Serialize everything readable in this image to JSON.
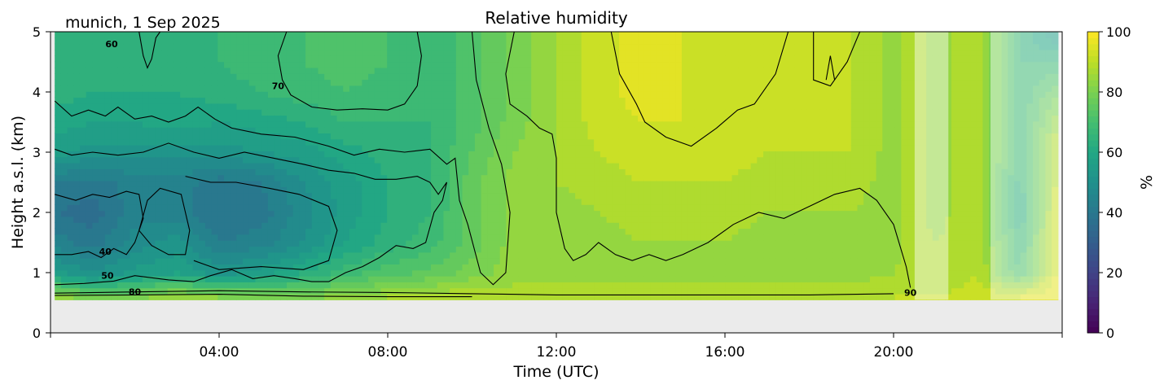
{
  "chart_data": {
    "type": "heatmap",
    "title": "Relative humidity",
    "subtitle": "munich, 1 Sep 2025",
    "xlabel": "Time (UTC)",
    "ylabel": "Height a.s.l. (km)",
    "xlim": [
      0,
      24
    ],
    "ylim": [
      0,
      5
    ],
    "x_ticks": [
      {
        "value": 4,
        "label": "04:00"
      },
      {
        "value": 8,
        "label": "08:00"
      },
      {
        "value": 12,
        "label": "12:00"
      },
      {
        "value": 16,
        "label": "16:00"
      },
      {
        "value": 20,
        "label": "20:00"
      }
    ],
    "y_ticks": [
      {
        "value": 0,
        "label": "0"
      },
      {
        "value": 1,
        "label": "1"
      },
      {
        "value": 2,
        "label": "2"
      },
      {
        "value": 3,
        "label": "3"
      },
      {
        "value": 4,
        "label": "4"
      },
      {
        "value": 5,
        "label": "5"
      }
    ],
    "colorbar": {
      "label": "%",
      "range": [
        0,
        100
      ],
      "colormap": "viridis",
      "ticks": [
        {
          "value": 0,
          "label": "0"
        },
        {
          "value": 20,
          "label": "20"
        },
        {
          "value": 40,
          "label": "40"
        },
        {
          "value": 60,
          "label": "60"
        },
        {
          "value": 80,
          "label": "80"
        },
        {
          "value": 100,
          "label": "100"
        }
      ]
    },
    "data_bottom_km": 0.55,
    "missing_color": "#ebebeb",
    "times_h": [
      0.1,
      1,
      2,
      3,
      4,
      5,
      6,
      7,
      8,
      9,
      10,
      11,
      12,
      13,
      14,
      15,
      16,
      17,
      18,
      19,
      20,
      20.5,
      21,
      22,
      23,
      23.9
    ],
    "heights_km": [
      0.6,
      1.0,
      1.5,
      2.0,
      2.5,
      3.0,
      3.5,
      4.0,
      4.5,
      5.0
    ],
    "rh_percent": [
      [
        86,
        78,
        80,
        86,
        82,
        80,
        80,
        84,
        86,
        88,
        90,
        88,
        88,
        88,
        88,
        88,
        88,
        88,
        88,
        88,
        90,
        90,
        90,
        92,
        94,
        96
      ],
      [
        55,
        50,
        55,
        58,
        52,
        56,
        62,
        68,
        72,
        75,
        80,
        84,
        84,
        84,
        84,
        84,
        84,
        84,
        84,
        84,
        86,
        88,
        86,
        90,
        70,
        96
      ],
      [
        44,
        40,
        48,
        52,
        42,
        44,
        50,
        58,
        64,
        68,
        76,
        84,
        84,
        84,
        86,
        86,
        86,
        84,
        84,
        84,
        84,
        88,
        86,
        90,
        66,
        96
      ],
      [
        38,
        36,
        44,
        44,
        38,
        40,
        48,
        56,
        62,
        66,
        76,
        84,
        84,
        86,
        88,
        88,
        88,
        86,
        86,
        86,
        84,
        88,
        84,
        90,
        62,
        94
      ],
      [
        42,
        40,
        44,
        44,
        40,
        42,
        50,
        56,
        62,
        66,
        76,
        84,
        86,
        88,
        90,
        90,
        90,
        88,
        88,
        88,
        84,
        88,
        84,
        90,
        64,
        92
      ],
      [
        56,
        52,
        52,
        52,
        52,
        54,
        56,
        60,
        64,
        66,
        74,
        82,
        86,
        90,
        92,
        92,
        92,
        90,
        90,
        90,
        84,
        88,
        84,
        90,
        66,
        90
      ],
      [
        60,
        58,
        58,
        60,
        58,
        60,
        62,
        66,
        66,
        66,
        72,
        80,
        86,
        92,
        94,
        94,
        92,
        90,
        90,
        90,
        84,
        88,
        84,
        90,
        66,
        86
      ],
      [
        64,
        62,
        62,
        62,
        64,
        66,
        68,
        70,
        68,
        66,
        72,
        80,
        86,
        92,
        96,
        94,
        92,
        90,
        90,
        90,
        84,
        88,
        84,
        90,
        66,
        78
      ],
      [
        64,
        64,
        64,
        62,
        66,
        68,
        70,
        72,
        70,
        66,
        72,
        80,
        86,
        92,
        96,
        94,
        92,
        90,
        90,
        90,
        84,
        88,
        84,
        90,
        66,
        66
      ],
      [
        64,
        64,
        62,
        62,
        66,
        68,
        70,
        72,
        70,
        66,
        72,
        80,
        86,
        92,
        96,
        94,
        92,
        90,
        90,
        90,
        84,
        88,
        84,
        90,
        66,
        52
      ]
    ],
    "contour_levels": [
      40,
      50,
      60,
      70,
      80,
      90
    ],
    "contour_labels": [
      {
        "label": "60",
        "t": 1.45,
        "h": 4.8
      },
      {
        "label": "70",
        "t": 5.4,
        "h": 4.1
      },
      {
        "label": "40",
        "t": 1.3,
        "h": 1.35
      },
      {
        "label": "50",
        "t": 1.35,
        "h": 0.95
      },
      {
        "label": "80",
        "t": 2.0,
        "h": 0.68
      },
      {
        "label": "90",
        "t": 20.4,
        "h": 0.67
      }
    ],
    "contours": [
      {
        "level": 40,
        "points": [
          [
            0.1,
            1.3
          ],
          [
            0.5,
            1.3
          ],
          [
            0.9,
            1.35
          ],
          [
            1.2,
            1.25
          ],
          [
            1.5,
            1.4
          ],
          [
            1.8,
            1.3
          ],
          [
            2.0,
            1.5
          ],
          [
            2.2,
            1.9
          ],
          [
            2.1,
            2.3
          ],
          [
            1.8,
            2.35
          ],
          [
            1.4,
            2.25
          ],
          [
            1.0,
            2.3
          ],
          [
            0.6,
            2.2
          ],
          [
            0.1,
            2.3
          ]
        ]
      },
      {
        "level": 40,
        "points": [
          [
            2.1,
            1.7
          ],
          [
            2.4,
            1.45
          ],
          [
            2.8,
            1.3
          ],
          [
            3.2,
            1.3
          ],
          [
            3.3,
            1.7
          ],
          [
            3.1,
            2.3
          ],
          [
            2.6,
            2.4
          ],
          [
            2.3,
            2.2
          ],
          [
            2.1,
            1.7
          ]
        ]
      },
      {
        "level": 40,
        "points": [
          [
            3.2,
            2.6
          ],
          [
            3.8,
            2.5
          ],
          [
            4.4,
            2.5
          ],
          [
            5.2,
            2.4
          ],
          [
            5.9,
            2.3
          ],
          [
            6.6,
            2.1
          ],
          [
            6.8,
            1.7
          ],
          [
            6.6,
            1.2
          ],
          [
            6.0,
            1.05
          ],
          [
            5.0,
            1.1
          ],
          [
            4.0,
            1.05
          ],
          [
            3.4,
            1.2
          ]
        ]
      },
      {
        "level": 50,
        "points": [
          [
            0.1,
            0.8
          ],
          [
            0.8,
            0.82
          ],
          [
            1.5,
            0.86
          ],
          [
            2.0,
            0.95
          ],
          [
            2.8,
            0.88
          ],
          [
            3.4,
            0.85
          ],
          [
            3.8,
            0.95
          ],
          [
            4.3,
            1.05
          ],
          [
            4.8,
            0.9
          ],
          [
            5.3,
            0.95
          ],
          [
            5.8,
            0.9
          ],
          [
            6.2,
            0.85
          ],
          [
            6.6,
            0.85
          ],
          [
            7.0,
            1.0
          ],
          [
            7.4,
            1.1
          ],
          [
            7.8,
            1.25
          ],
          [
            8.2,
            1.45
          ],
          [
            8.6,
            1.4
          ],
          [
            8.9,
            1.5
          ],
          [
            9.1,
            2.0
          ],
          [
            9.3,
            2.2
          ],
          [
            9.4,
            2.5
          ],
          [
            9.2,
            2.3
          ],
          [
            9.0,
            2.5
          ],
          [
            8.7,
            2.6
          ],
          [
            8.2,
            2.55
          ],
          [
            7.7,
            2.55
          ],
          [
            7.2,
            2.65
          ],
          [
            6.6,
            2.7
          ],
          [
            6.0,
            2.8
          ],
          [
            5.3,
            2.9
          ],
          [
            4.6,
            3.0
          ],
          [
            4.0,
            2.9
          ],
          [
            3.4,
            3.0
          ],
          [
            2.8,
            3.15
          ],
          [
            2.2,
            3.0
          ],
          [
            1.6,
            2.95
          ],
          [
            1.0,
            3.0
          ],
          [
            0.5,
            2.95
          ],
          [
            0.1,
            3.05
          ]
        ]
      },
      {
        "level": 60,
        "points": [
          [
            0.1,
            3.85
          ],
          [
            0.5,
            3.6
          ],
          [
            0.9,
            3.7
          ],
          [
            1.3,
            3.6
          ],
          [
            1.6,
            3.75
          ],
          [
            2.0,
            3.55
          ],
          [
            2.4,
            3.6
          ],
          [
            2.8,
            3.5
          ],
          [
            3.2,
            3.6
          ],
          [
            3.5,
            3.75
          ],
          [
            3.9,
            3.55
          ],
          [
            4.3,
            3.4
          ],
          [
            5.0,
            3.3
          ],
          [
            5.8,
            3.25
          ],
          [
            6.6,
            3.1
          ],
          [
            7.2,
            2.95
          ],
          [
            7.8,
            3.05
          ],
          [
            8.4,
            3.0
          ],
          [
            9.0,
            3.05
          ],
          [
            9.4,
            2.8
          ],
          [
            9.6,
            2.9
          ],
          [
            9.7,
            2.2
          ],
          [
            9.9,
            1.8
          ],
          [
            10.2,
            1.0
          ],
          [
            10.5,
            0.8
          ],
          [
            10.8,
            1.0
          ],
          [
            10.9,
            2.0
          ],
          [
            10.7,
            2.8
          ],
          [
            10.4,
            3.4
          ],
          [
            10.1,
            4.2
          ],
          [
            10.0,
            5.0
          ]
        ]
      },
      {
        "level": 60,
        "points": [
          [
            2.1,
            5.0
          ],
          [
            2.2,
            4.6
          ],
          [
            2.3,
            4.4
          ],
          [
            2.4,
            4.55
          ],
          [
            2.5,
            4.9
          ],
          [
            2.6,
            5.0
          ]
        ]
      },
      {
        "level": 70,
        "points": [
          [
            5.6,
            5.0
          ],
          [
            5.4,
            4.6
          ],
          [
            5.5,
            4.2
          ],
          [
            5.7,
            3.95
          ],
          [
            6.2,
            3.75
          ],
          [
            6.8,
            3.7
          ],
          [
            7.4,
            3.72
          ],
          [
            8.0,
            3.7
          ],
          [
            8.4,
            3.8
          ],
          [
            8.7,
            4.1
          ],
          [
            8.8,
            4.6
          ],
          [
            8.7,
            5.0
          ]
        ]
      },
      {
        "level": 70,
        "points": [
          [
            11.0,
            5.0
          ],
          [
            10.8,
            4.3
          ],
          [
            10.9,
            3.8
          ],
          [
            11.3,
            3.6
          ],
          [
            11.6,
            3.4
          ],
          [
            11.9,
            3.3
          ],
          [
            12.0,
            2.9
          ],
          [
            12.0,
            2.0
          ],
          [
            12.2,
            1.4
          ],
          [
            12.4,
            1.2
          ],
          [
            12.7,
            1.3
          ],
          [
            13.0,
            1.5
          ],
          [
            13.4,
            1.3
          ],
          [
            13.8,
            1.2
          ],
          [
            14.2,
            1.3
          ],
          [
            14.6,
            1.2
          ],
          [
            15.0,
            1.3
          ],
          [
            15.6,
            1.5
          ],
          [
            16.2,
            1.8
          ],
          [
            16.8,
            2.0
          ],
          [
            17.4,
            1.9
          ],
          [
            18.0,
            2.1
          ],
          [
            18.6,
            2.3
          ],
          [
            19.2,
            2.4
          ],
          [
            19.6,
            2.2
          ],
          [
            20.0,
            1.8
          ],
          [
            20.3,
            1.1
          ],
          [
            20.4,
            0.75
          ]
        ]
      },
      {
        "level": 80,
        "points": [
          [
            0.1,
            0.66
          ],
          [
            2.0,
            0.68
          ],
          [
            4.0,
            0.7
          ],
          [
            6.0,
            0.68
          ],
          [
            8.0,
            0.67
          ],
          [
            10.0,
            0.65
          ],
          [
            12.0,
            0.63
          ],
          [
            14.0,
            0.63
          ],
          [
            16.0,
            0.63
          ],
          [
            18.0,
            0.63
          ],
          [
            20.0,
            0.65
          ]
        ]
      },
      {
        "level": 80,
        "points": [
          [
            0.1,
            0.62
          ],
          [
            2.0,
            0.63
          ],
          [
            4.0,
            0.64
          ],
          [
            6.0,
            0.61
          ],
          [
            8.0,
            0.6
          ],
          [
            10.0,
            0.6
          ]
        ]
      },
      {
        "level": 90,
        "points": [
          [
            13.3,
            5.0
          ],
          [
            13.5,
            4.3
          ],
          [
            13.9,
            3.8
          ],
          [
            14.1,
            3.5
          ],
          [
            14.6,
            3.25
          ],
          [
            15.2,
            3.1
          ],
          [
            15.8,
            3.4
          ],
          [
            16.3,
            3.7
          ],
          [
            16.7,
            3.8
          ],
          [
            17.2,
            4.3
          ],
          [
            17.5,
            5.0
          ]
        ]
      },
      {
        "level": 90,
        "points": [
          [
            18.1,
            5.0
          ],
          [
            18.1,
            4.2
          ],
          [
            18.5,
            4.1
          ],
          [
            18.9,
            4.5
          ],
          [
            19.2,
            5.0
          ]
        ]
      },
      {
        "level": 90,
        "points": [
          [
            18.4,
            4.2
          ],
          [
            18.5,
            4.6
          ],
          [
            18.6,
            4.2
          ]
        ]
      }
    ]
  }
}
